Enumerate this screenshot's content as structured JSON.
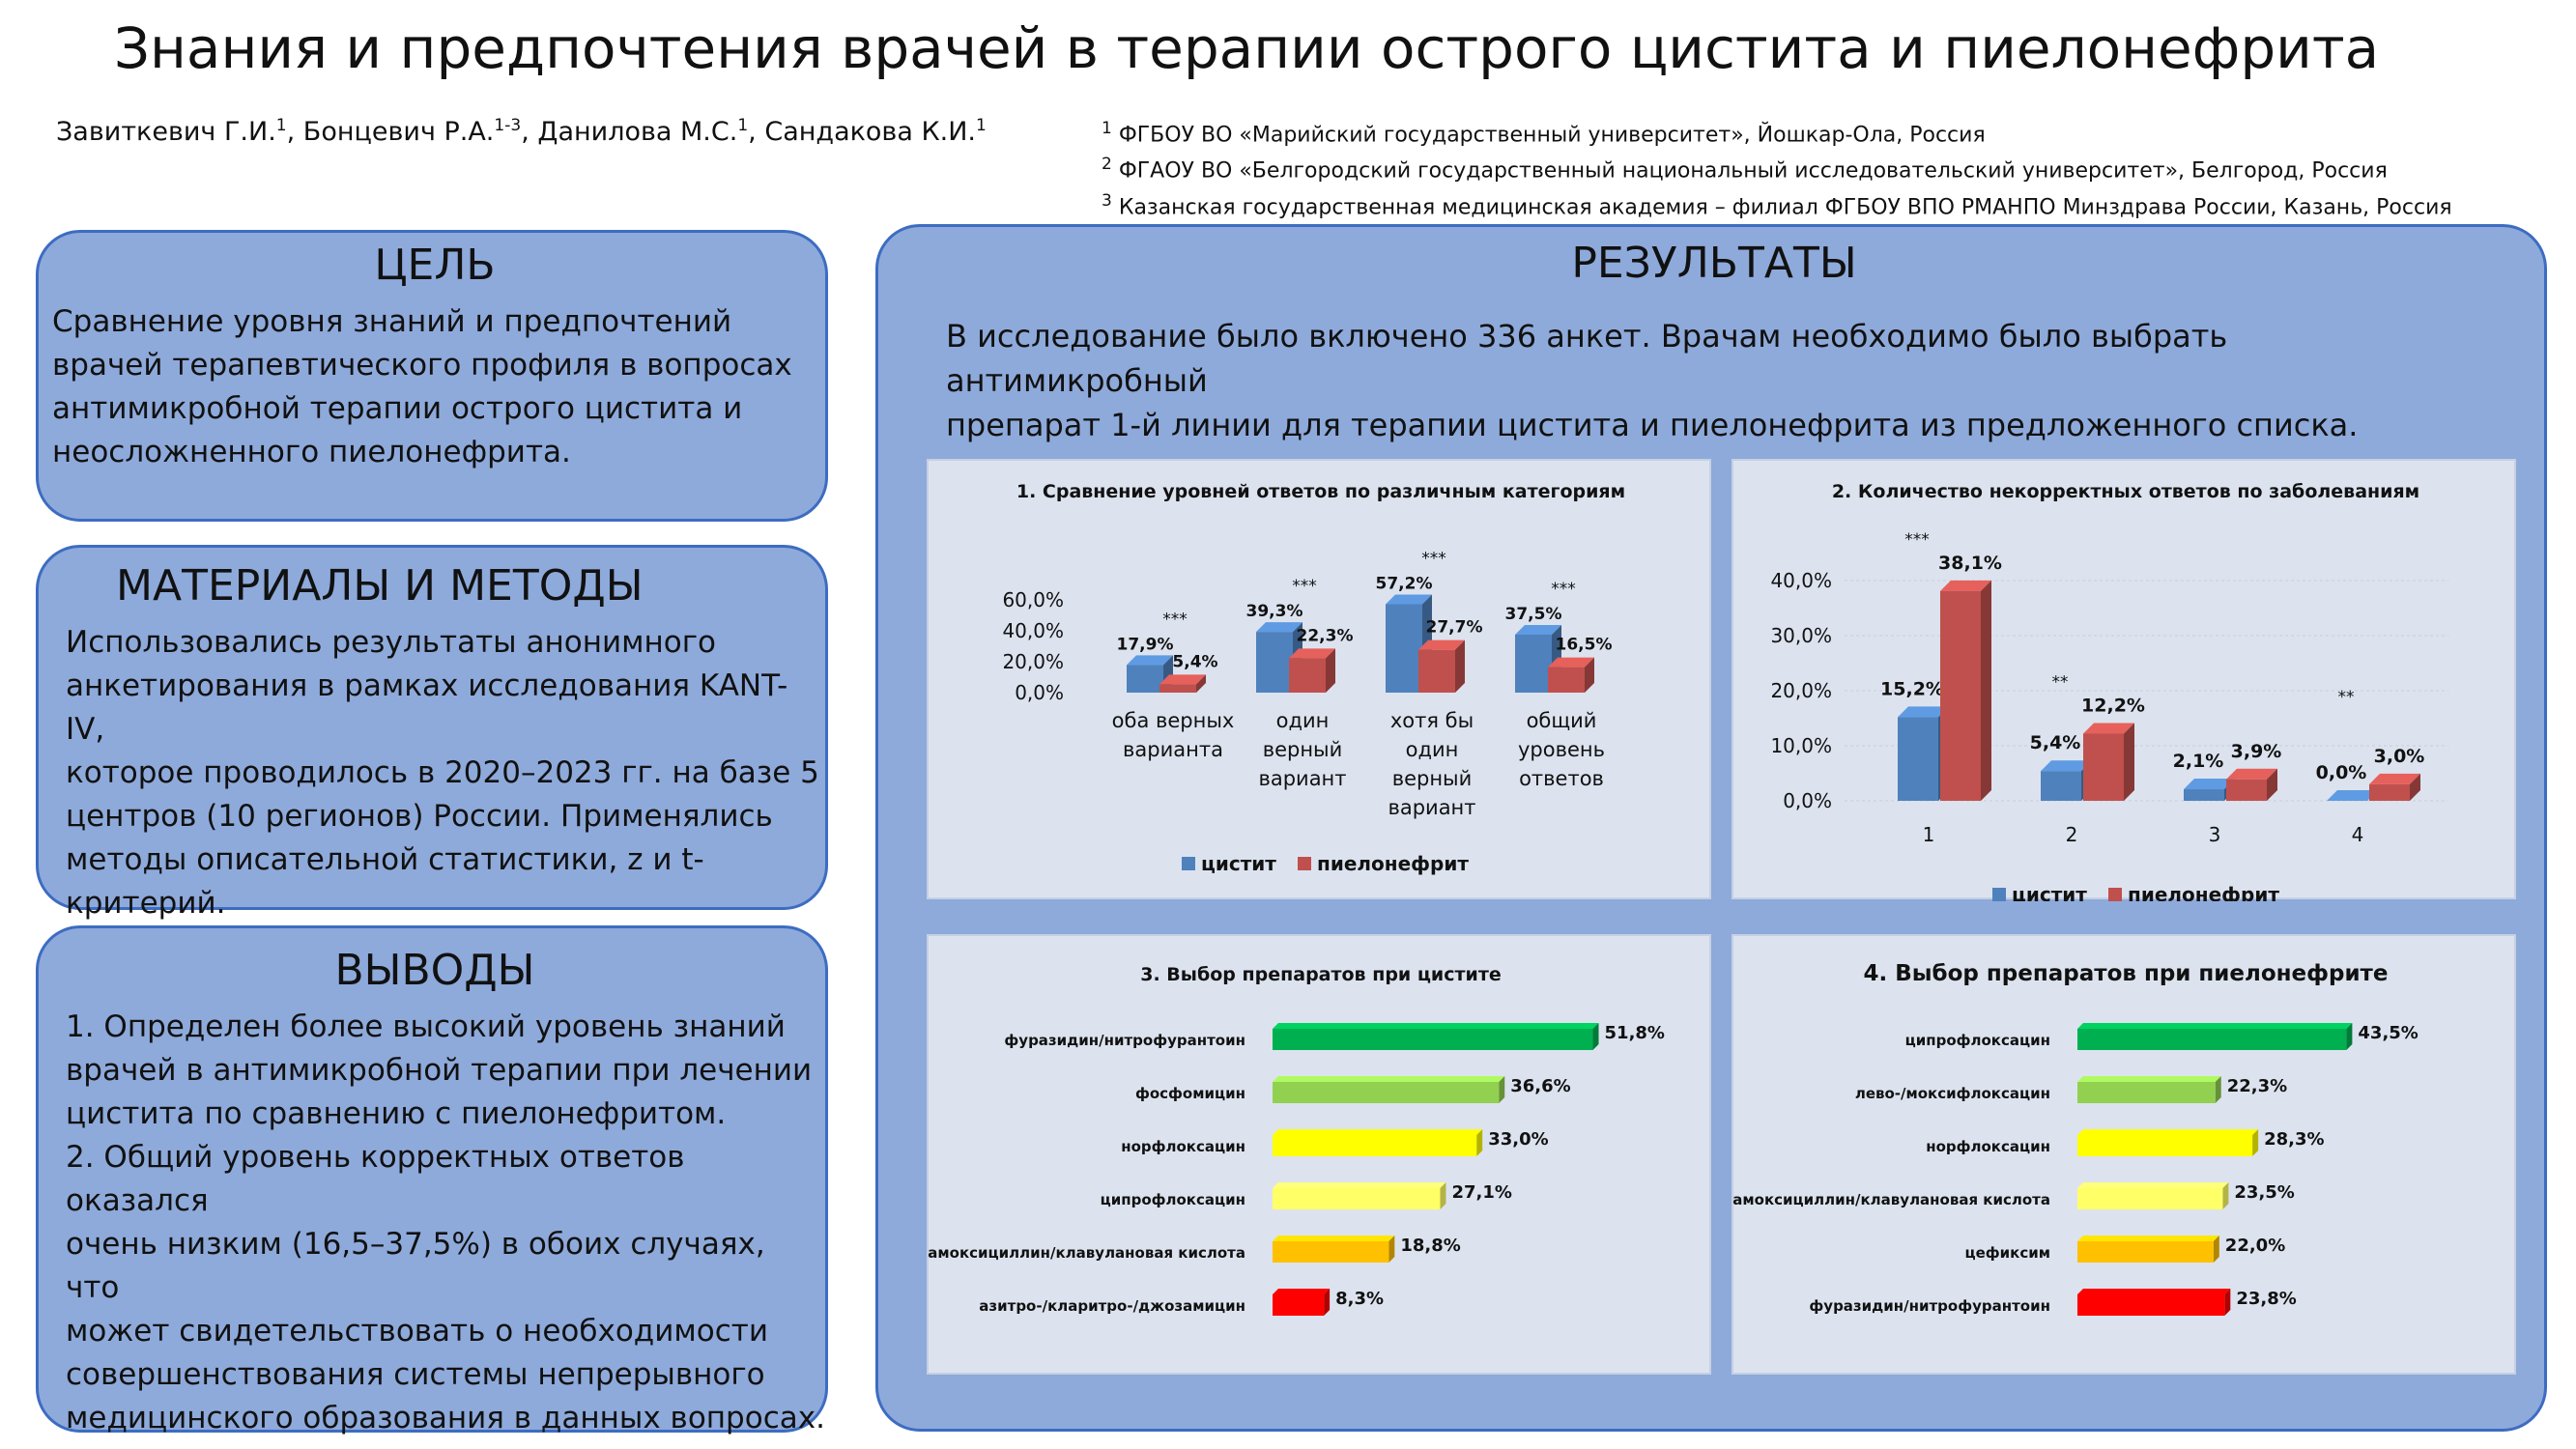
{
  "title": "Знания и предпочтения врачей в терапии острого цистита и пиелонефрита",
  "authors": [
    {
      "name": "Завиткевич Г.И.",
      "sup": "1"
    },
    {
      "name": "Бонцевич Р.А.",
      "sup": "1-3"
    },
    {
      "name": "Данилова М.С.",
      "sup": "1"
    },
    {
      "name": "Сандакова К.И.",
      "sup": "1"
    }
  ],
  "affiliations": [
    {
      "sup": "1",
      "text": "ФГБОУ ВО «Марийский государственный университет», Йошкар-Ола, Россия"
    },
    {
      "sup": "2",
      "text": "ФГАОУ ВО «Белгородский государственный национальный исследовательский университет», Белгород, Россия"
    },
    {
      "sup": "3",
      "text": "Казанская государственная медицинская академия – филиал ФГБОУ ВПО РМАНПО Минздрава России, Казань, Россия"
    }
  ],
  "goal": {
    "title": "ЦЕЛЬ",
    "lines": [
      "Сравнение уровня знаний и предпочтений",
      "врачей терапевтического профиля в вопросах",
      "антимикробной терапии острого цистита и",
      "неосложненного пиелонефрита."
    ]
  },
  "methods": {
    "title": "МАТЕРИАЛЫ  И  МЕТОДЫ",
    "lines": [
      "Использовались результаты анонимного",
      "анкетирования в рамках исследования KANT-IV,",
      "которое проводилось в 2020–2023 гг. на базе 5",
      "центров (10 регионов) России. Применялись",
      "методы описательной статистики, z и t-",
      "критерий."
    ]
  },
  "conclusions": {
    "title": "ВЫВОДЫ",
    "lines": [
      "1. Определен более высокий уровень знаний",
      "врачей в антимикробной терапии при лечении",
      "цистита по сравнению с пиелонефритом.",
      "2. Общий уровень корректных ответов оказался",
      "очень низким (16,5–37,5%) в обоих случаях, что",
      "может свидетельствовать о необходимости",
      "совершенствования системы непрерывного",
      "медицинского образования в данных вопросах."
    ]
  },
  "results": {
    "title": "РЕЗУЛЬТАТЫ",
    "lines": [
      "В исследование было включено 336 анкет. Врачам необходимо было выбрать антимикробный",
      "препарат 1-й линии для терапии цистита и пиелонефрита из предложенного списка."
    ]
  },
  "colors": {
    "cystitis": "#4f81bd",
    "pyelo": "#c0504d",
    "box_fill": "#8eaadb",
    "box_border": "#3d6cc1",
    "panel_fill": "#dce3ef"
  },
  "chart_data": [
    {
      "type": "bar",
      "title": "1. Сравнение уровней ответов по различным категориям",
      "categories": [
        [
          "оба верных",
          "варианта"
        ],
        [
          "один",
          "верный",
          "вариант"
        ],
        [
          "хотя бы",
          "один",
          "верный",
          "вариант"
        ],
        [
          "общий",
          "уровень",
          "ответов"
        ]
      ],
      "series": [
        {
          "name": "цистит",
          "values": [
            17.9,
            39.3,
            57.2,
            37.5
          ],
          "labels": [
            "17,9%",
            "39,3%",
            "57,2%",
            "37,5%"
          ]
        },
        {
          "name": "пиелонефрит",
          "values": [
            5.4,
            22.3,
            27.7,
            16.5
          ],
          "labels": [
            "5,4%",
            "22,3%",
            "27,7%",
            "16,5%"
          ]
        }
      ],
      "significance": [
        "***",
        "***",
        "***",
        "***"
      ],
      "yticks": [
        "60,0%",
        "40,0%",
        "20,0%",
        "0,0%"
      ],
      "ylim": [
        0,
        60
      ]
    },
    {
      "type": "bar",
      "title": "2. Количество некорректных ответов по  заболеваниям",
      "categories": [
        "1",
        "2",
        "3",
        "4"
      ],
      "series": [
        {
          "name": "цистит",
          "values": [
            15.2,
            5.4,
            2.1,
            0.0
          ],
          "labels": [
            "15,2%",
            "5,4%",
            "2,1%",
            "0,0%"
          ]
        },
        {
          "name": "пиелонефрит",
          "values": [
            38.1,
            12.2,
            3.9,
            3.0
          ],
          "labels": [
            "38,1%",
            "12,2%",
            "3,9%",
            "3,0%"
          ]
        }
      ],
      "significance": [
        "***",
        "**",
        "",
        "**"
      ],
      "yticks": [
        "40,0%",
        "30,0%",
        "20,0%",
        "10,0%",
        "0,0%"
      ],
      "ylim": [
        0,
        40
      ]
    },
    {
      "type": "bar",
      "orientation": "horizontal",
      "title": "3. Выбор препаратов при цистите",
      "categories": [
        "фуразидин/нитрофурантоин",
        "фосфомицин",
        "норфлоксацин",
        "ципрофлоксацин",
        "амоксициллин/клавулановая кислота",
        "азитро-/кларитро-/джозамицин"
      ],
      "values": [
        51.8,
        36.6,
        33.0,
        27.1,
        18.8,
        8.3
      ],
      "labels": [
        "51,8%",
        "36,6%",
        "33,0%",
        "27,1%",
        "18,8%",
        "8,3%"
      ],
      "bar_colors": [
        "#00b050",
        "#92d050",
        "#ffff00",
        "#ffff66",
        "#ffc000",
        "#ff0000"
      ]
    },
    {
      "type": "bar",
      "orientation": "horizontal",
      "title": "4. Выбор препаратов при пиелонефрите",
      "categories": [
        "ципрофлоксацин",
        "лево-/моксифлоксацин",
        "норфлоксацин",
        "амоксициллин/клавулановая кислота",
        "цефиксим",
        "фуразидин/нитрофурантоин"
      ],
      "values": [
        43.5,
        22.3,
        28.3,
        23.5,
        22.0,
        23.8
      ],
      "labels": [
        "43,5%",
        "22,3%",
        "28,3%",
        "23,5%",
        "22,0%",
        "23,8%"
      ],
      "bar_colors": [
        "#00b050",
        "#92d050",
        "#ffff00",
        "#ffff66",
        "#ffc000",
        "#ff0000"
      ]
    }
  ]
}
